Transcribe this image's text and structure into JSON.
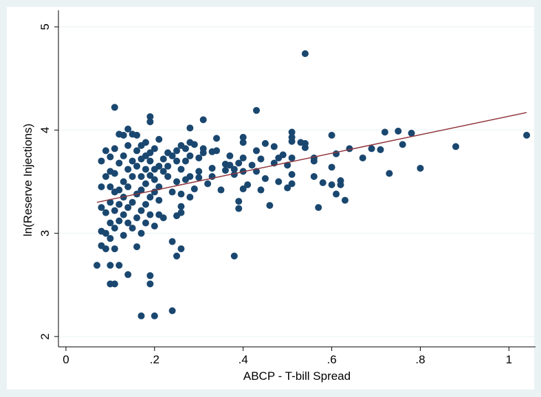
{
  "chart_data": {
    "type": "scatter",
    "x_label": "ABCP - T-bill Spread",
    "y_label": "ln(Reserve Injections)",
    "point_color": "#1a476f",
    "grid": true,
    "xlim": [
      -0.017,
      1.06
    ],
    "ylim": [
      1.9,
      5.16
    ],
    "xticks": [
      0,
      {
        "value": 0.2,
        "label": ".2"
      },
      {
        "value": 0.4,
        "label": ".4"
      },
      {
        "value": 0.6,
        "label": ".6"
      },
      {
        "value": 0.8,
        "label": ".8"
      },
      1
    ],
    "yticks": [
      2,
      3,
      4,
      5
    ],
    "fit_line": {
      "color": "#90353b",
      "x": [
        0.07,
        1.04
      ],
      "y": [
        3.3,
        4.17
      ]
    },
    "x": [
      0.54,
      0.11,
      0.43,
      0.19,
      0.19,
      0.31,
      0.28,
      1.04,
      0.88,
      0.8,
      0.78,
      0.75,
      0.72,
      0.76,
      0.73,
      0.71,
      0.69,
      0.67,
      0.64,
      0.63,
      0.62,
      0.62,
      0.61,
      0.61,
      0.6,
      0.6,
      0.6,
      0.58,
      0.57,
      0.56,
      0.56,
      0.56,
      0.54,
      0.54,
      0.53,
      0.51,
      0.51,
      0.51,
      0.51,
      0.51,
      0.51,
      0.5,
      0.5,
      0.49,
      0.48,
      0.48,
      0.47,
      0.47,
      0.46,
      0.45,
      0.45,
      0.44,
      0.44,
      0.43,
      0.43,
      0.42,
      0.41,
      0.4,
      0.4,
      0.4,
      0.4,
      0.4,
      0.39,
      0.39,
      0.39,
      0.38,
      0.38,
      0.38,
      0.37,
      0.37,
      0.36,
      0.36,
      0.35,
      0.34,
      0.34,
      0.33,
      0.33,
      0.33,
      0.32,
      0.31,
      0.31,
      0.3,
      0.3,
      0.3,
      0.29,
      0.29,
      0.28,
      0.28,
      0.28,
      0.28,
      0.27,
      0.27,
      0.27,
      0.26,
      0.26,
      0.26,
      0.26,
      0.26,
      0.26,
      0.25,
      0.25,
      0.25,
      0.25,
      0.25,
      0.24,
      0.24,
      0.24,
      0.24,
      0.23,
      0.23,
      0.23,
      0.22,
      0.22,
      0.22,
      0.21,
      0.21,
      0.21,
      0.21,
      0.21,
      0.2,
      0.2,
      0.2,
      0.2,
      0.2,
      0.2,
      0.19,
      0.19,
      0.19,
      0.19,
      0.19,
      0.19,
      0.19,
      0.18,
      0.18,
      0.18,
      0.18,
      0.18,
      0.18,
      0.17,
      0.17,
      0.17,
      0.17,
      0.17,
      0.17,
      0.17,
      0.16,
      0.16,
      0.16,
      0.16,
      0.16,
      0.16,
      0.15,
      0.15,
      0.15,
      0.15,
      0.15,
      0.14,
      0.14,
      0.14,
      0.14,
      0.14,
      0.14,
      0.14,
      0.13,
      0.13,
      0.13,
      0.13,
      0.13,
      0.13,
      0.12,
      0.12,
      0.12,
      0.12,
      0.12,
      0.12,
      0.11,
      0.11,
      0.11,
      0.11,
      0.11,
      0.11,
      0.11,
      0.1,
      0.1,
      0.1,
      0.1,
      0.1,
      0.1,
      0.1,
      0.1,
      0.09,
      0.09,
      0.09,
      0.09,
      0.09,
      0.08,
      0.08,
      0.08,
      0.08,
      0.08,
      0.07
    ],
    "y": [
      4.74,
      4.22,
      4.19,
      4.13,
      4.08,
      4.1,
      4.02,
      3.95,
      3.84,
      3.63,
      3.97,
      3.99,
      3.98,
      3.86,
      3.58,
      3.81,
      3.82,
      3.73,
      3.82,
      3.32,
      3.51,
      3.47,
      3.38,
      3.77,
      3.95,
      3.64,
      3.47,
      3.49,
      3.25,
      3.73,
      3.7,
      3.55,
      3.83,
      3.87,
      3.88,
      3.98,
      3.93,
      3.89,
      3.73,
      3.57,
      3.48,
      3.66,
      3.44,
      3.76,
      3.73,
      3.5,
      3.84,
      3.68,
      3.27,
      3.87,
      3.53,
      3.72,
      3.42,
      3.8,
      3.6,
      3.66,
      3.47,
      3.93,
      3.88,
      3.73,
      3.6,
      3.43,
      3.68,
      3.31,
      3.24,
      3.62,
      3.57,
      2.78,
      3.75,
      3.66,
      3.61,
      3.67,
      3.42,
      3.92,
      3.8,
      3.79,
      3.63,
      3.55,
      3.48,
      3.82,
      3.78,
      3.73,
      3.6,
      3.54,
      3.86,
      3.43,
      3.88,
      3.75,
      3.55,
      3.35,
      3.82,
      3.7,
      3.52,
      3.85,
      3.62,
      3.38,
      3.26,
      3.2,
      2.85,
      3.8,
      3.7,
      3.5,
      3.17,
      2.78,
      3.75,
      3.4,
      2.92,
      2.25,
      3.78,
      3.65,
      3.55,
      3.72,
      3.6,
      3.15,
      3.91,
      3.65,
      3.45,
      3.32,
      3.18,
      3.82,
      3.62,
      3.52,
      3.4,
      3.07,
      2.2,
      3.78,
      3.7,
      3.56,
      3.35,
      3.18,
      2.59,
      2.51,
      3.88,
      3.75,
      3.62,
      3.48,
      3.28,
      3.1,
      3.85,
      3.72,
      3.55,
      3.42,
      3.22,
      3.0,
      2.2,
      3.95,
      3.8,
      3.65,
      3.38,
      3.15,
      2.87,
      3.96,
      3.7,
      3.55,
      3.3,
      3.05,
      4.01,
      3.85,
      3.62,
      3.45,
      3.25,
      3.1,
      2.6,
      3.95,
      3.75,
      3.5,
      3.35,
      3.18,
      2.98,
      3.96,
      3.68,
      3.42,
      3.28,
      3.12,
      2.69,
      3.82,
      3.58,
      3.4,
      3.22,
      3.05,
      2.85,
      2.51,
      3.74,
      3.6,
      3.45,
      3.3,
      3.1,
      2.95,
      2.69,
      2.51,
      3.8,
      3.55,
      3.2,
      3.0,
      2.85,
      3.7,
      3.45,
      3.25,
      3.02,
      2.88,
      2.69
    ]
  }
}
